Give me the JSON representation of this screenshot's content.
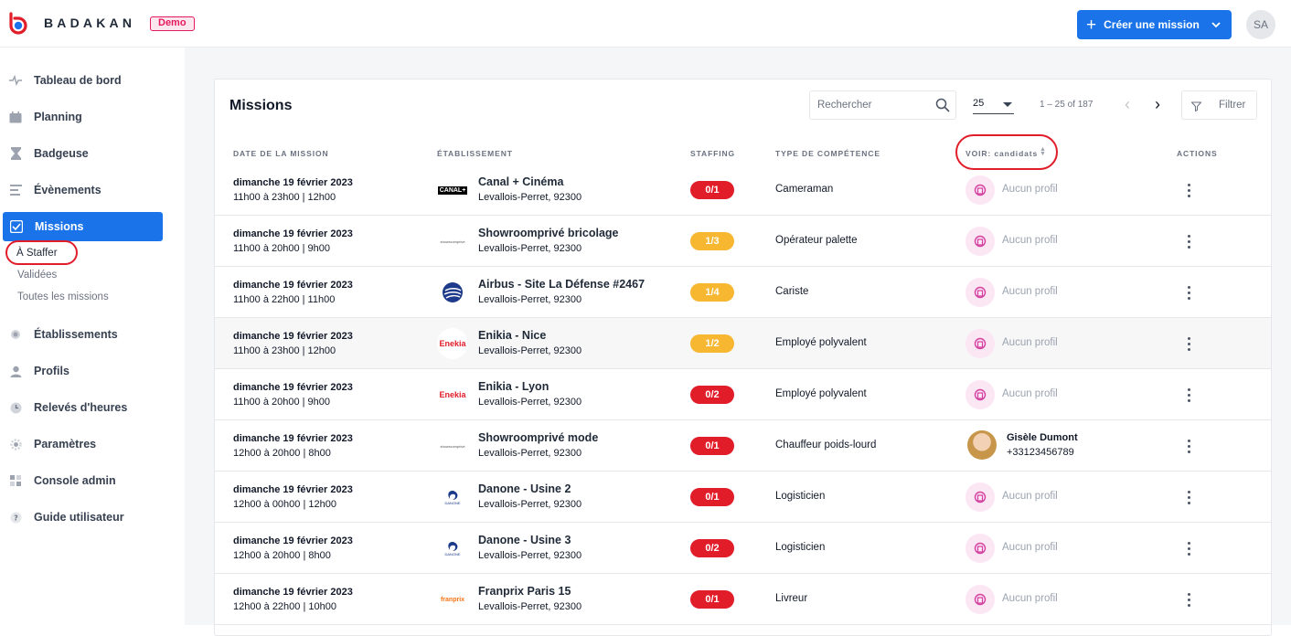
{
  "header": {
    "brand": "BADAKAN",
    "demo_badge": "Demo",
    "create_button": "Créer une mission",
    "avatar_initials": "SA",
    "accent_color": "#1a73e8"
  },
  "sidebar": {
    "items": [
      {
        "label": "Tableau de bord",
        "icon": "pulse-icon"
      },
      {
        "label": "Planning",
        "icon": "calendar-icon"
      },
      {
        "label": "Badgeuse",
        "icon": "hourglass-icon"
      },
      {
        "label": "Évènements",
        "icon": "list-icon"
      },
      {
        "label": "Missions",
        "icon": "checkbox-icon"
      },
      {
        "label": "Établissements",
        "icon": "building-icon"
      },
      {
        "label": "Profils",
        "icon": "user-icon"
      },
      {
        "label": "Relevés d'heures",
        "icon": "clock-icon"
      },
      {
        "label": "Paramètres",
        "icon": "gear-icon"
      },
      {
        "label": "Console admin",
        "icon": "grid-icon"
      },
      {
        "label": "Guide utilisateur",
        "icon": "help-icon"
      }
    ],
    "missions_sub": [
      "À Staffer",
      "Validées",
      "Toutes les missions"
    ]
  },
  "missions": {
    "title": "Missions",
    "search_placeholder": "Rechercher",
    "page_size": "25",
    "range": "1 – 25 of 187",
    "filter_label": "Filtrer",
    "columns": {
      "date": "DATE DE LA MISSION",
      "establishment": "ÉTABLISSEMENT",
      "staffing": "STAFFING",
      "skill": "TYPE DE COMPÉTENCE",
      "voir": "VOIR: candidats",
      "actions": "ACTIONS"
    },
    "rows": [
      {
        "date": "dimanche 19 février 2023",
        "hours": "11h00 à 23h00 | 12h00",
        "logo": "CANAL+",
        "name": "Canal + Cinéma",
        "address": "Levallois-Perret, 92300",
        "staffing": "0/1",
        "skill": "Cameraman",
        "profile": "Aucun profil"
      },
      {
        "date": "dimanche 19 février 2023",
        "hours": "11h00 à 20h00 | 9h00",
        "logo": "showroomprivé",
        "name": "Showroomprivé bricolage",
        "address": "Levallois-Perret, 92300",
        "staffing": "1/3",
        "skill": "Opérateur palette",
        "profile": "Aucun profil"
      },
      {
        "date": "dimanche 19 février 2023",
        "hours": "11h00 à 22h00 | 11h00",
        "logo": "airbus",
        "name": "Airbus - Site La Défense #2467",
        "address": "Levallois-Perret, 92300",
        "staffing": "1/4",
        "skill": "Cariste",
        "profile": "Aucun profil"
      },
      {
        "date": "dimanche 19 février 2023",
        "hours": "11h00 à 23h00 | 12h00",
        "logo": "Enekia",
        "name": "Enikia - Nice",
        "address": "Levallois-Perret, 92300",
        "staffing": "1/2",
        "skill": "Employé polyvalent",
        "profile": "Aucun profil"
      },
      {
        "date": "dimanche 19 février 2023",
        "hours": "11h00 à 20h00 | 9h00",
        "logo": "Enekia",
        "name": "Enikia - Lyon",
        "address": "Levallois-Perret, 92300",
        "staffing": "0/2",
        "skill": "Employé polyvalent",
        "profile": "Aucun profil"
      },
      {
        "date": "dimanche 19 février 2023",
        "hours": "12h00 à 20h00 | 8h00",
        "logo": "showroomprivé",
        "name": "Showroomprivé mode",
        "address": "Levallois-Perret, 92300",
        "staffing": "0/1",
        "skill": "Chauffeur poids-lourd",
        "candidate_name": "Gisèle Dumont",
        "candidate_phone": "+33123456789"
      },
      {
        "date": "dimanche 19 février 2023",
        "hours": "12h00 à 00h00 | 12h00",
        "logo": "DANONE",
        "name": "Danone - Usine 2",
        "address": "Levallois-Perret, 92300",
        "staffing": "0/1",
        "skill": "Logisticien",
        "profile": "Aucun profil"
      },
      {
        "date": "dimanche 19 février 2023",
        "hours": "12h00 à 20h00 | 8h00",
        "logo": "DANONE",
        "name": "Danone - Usine 3",
        "address": "Levallois-Perret, 92300",
        "staffing": "0/2",
        "skill": "Logisticien",
        "profile": "Aucun profil"
      },
      {
        "date": "dimanche 19 février 2023",
        "hours": "12h00 à 22h00 | 10h00",
        "logo": "franprix",
        "name": "Franprix Paris 15",
        "address": "Levallois-Perret, 92300",
        "staffing": "0/1",
        "skill": "Livreur",
        "profile": "Aucun profil"
      }
    ]
  }
}
